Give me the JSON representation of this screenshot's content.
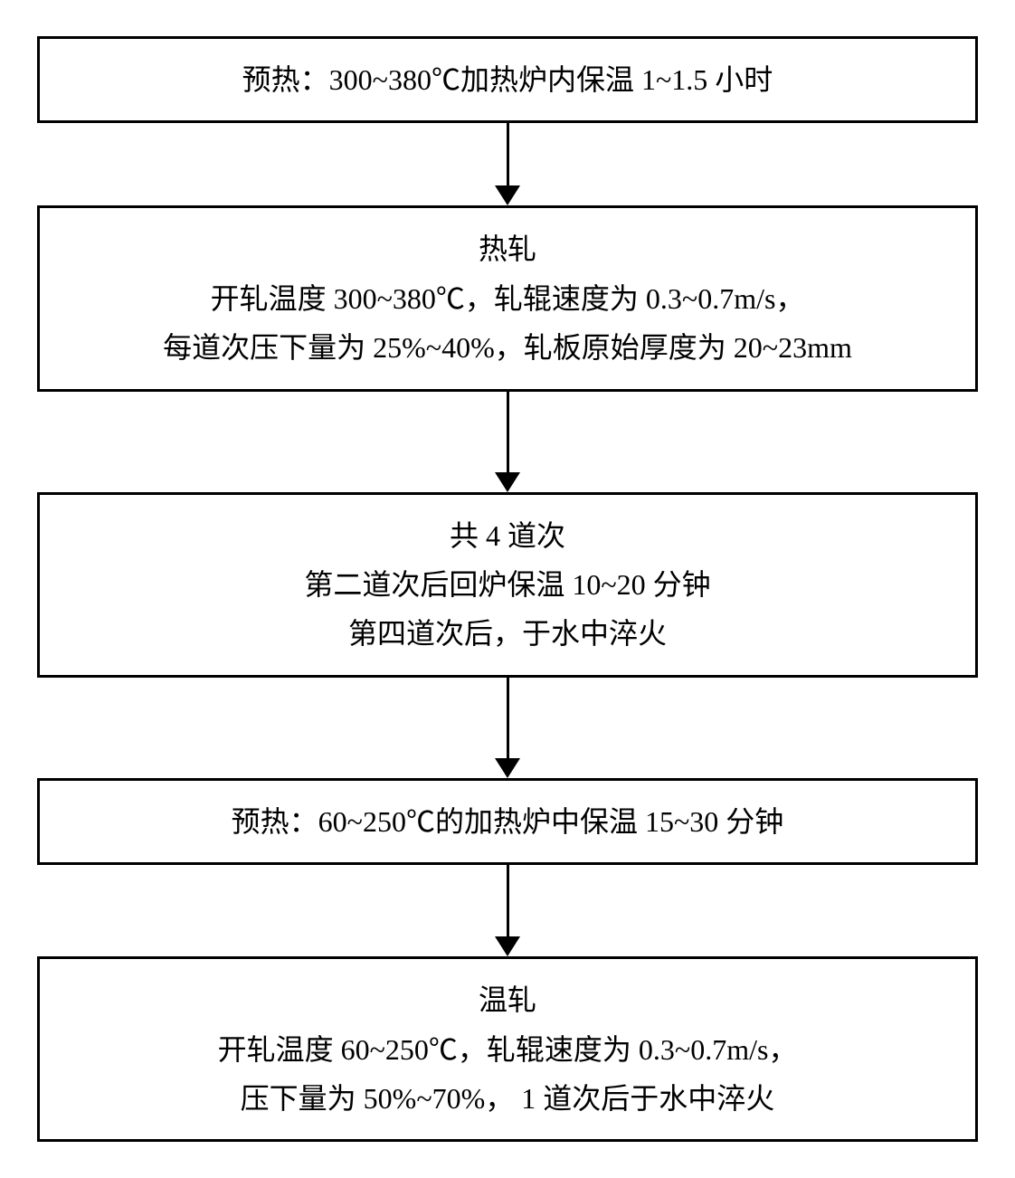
{
  "flowchart": {
    "type": "flowchart",
    "background_color": "#ffffff",
    "box_border_color": "#000000",
    "box_border_width": 3,
    "text_color": "#000000",
    "font_family": "SimSun",
    "font_size": 32,
    "arrow_color": "#000000",
    "arrow_shaft_width": 3,
    "arrow_head_width": 28,
    "arrow_head_height": 22,
    "nodes": [
      {
        "id": "step1",
        "lines": [
          "预热：300~380℃加热炉内保温 1~1.5 小时"
        ],
        "arrow_after_height": 70
      },
      {
        "id": "step2",
        "lines": [
          "热轧",
          "开轧温度 300~380℃，轧辊速度为 0.3~0.7m/s，",
          "每道次压下量为 25%~40%，轧板原始厚度为 20~23mm"
        ],
        "arrow_after_height": 90
      },
      {
        "id": "step3",
        "lines": [
          "共 4 道次",
          "第二道次后回炉保温 10~20 分钟",
          "第四道次后，于水中淬火"
        ],
        "arrow_after_height": 90
      },
      {
        "id": "step4",
        "lines": [
          "预热：60~250℃的加热炉中保温 15~30 分钟"
        ],
        "arrow_after_height": 80
      },
      {
        "id": "step5",
        "lines": [
          "温轧",
          "开轧温度 60~250℃，轧辊速度为 0.3~0.7m/s，",
          "压下量为 50%~70%， 1 道次后于水中淬火"
        ],
        "arrow_after_height": 0
      }
    ]
  }
}
